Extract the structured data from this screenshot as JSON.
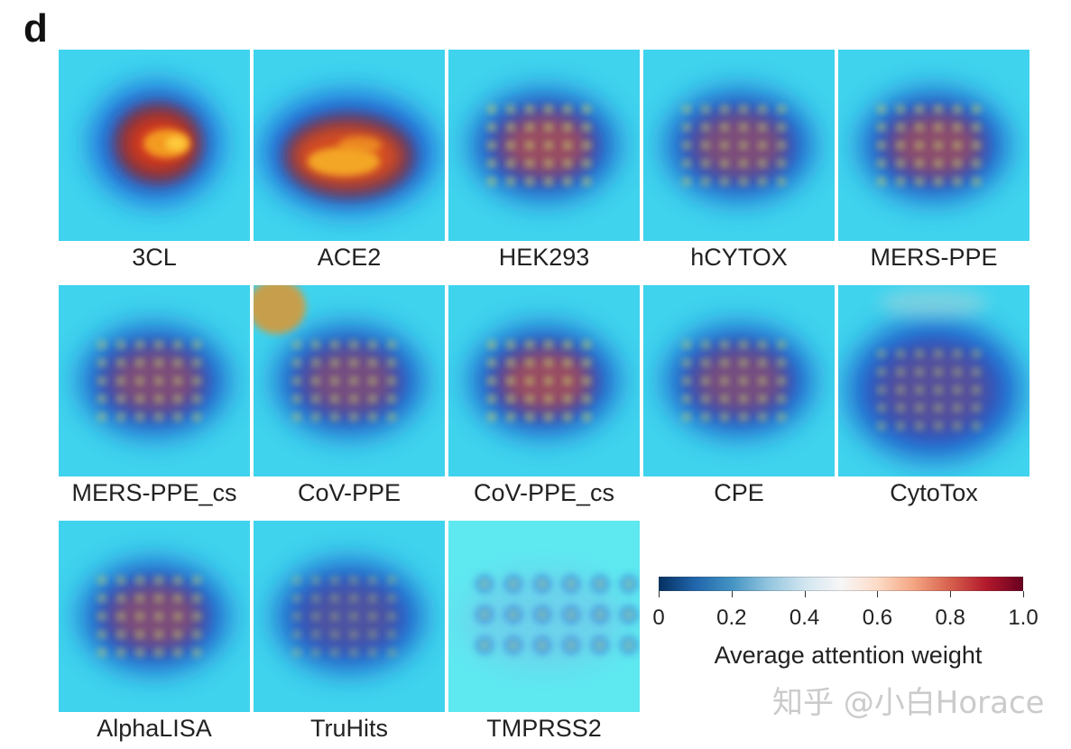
{
  "panel_letter": "d",
  "chart_data": {
    "type": "heatmap",
    "title": "",
    "colorbar": {
      "label": "Average attention weight",
      "range": [
        0,
        1.0
      ],
      "ticks": [
        "0",
        "0.2",
        "0.4",
        "0.6",
        "0.8",
        "1.0"
      ],
      "tick_values": [
        0,
        0.2,
        0.4,
        0.6,
        0.8,
        1.0
      ],
      "colors": [
        "#053061",
        "#2166ac",
        "#4393c3",
        "#92c5de",
        "#d1e5f0",
        "#f7f7f7",
        "#fddbc7",
        "#f4a582",
        "#d6604d",
        "#b2182b",
        "#67001f"
      ]
    },
    "panels": [
      {
        "label": "3CL",
        "peak": 0.9,
        "shape": "blob"
      },
      {
        "label": "ACE2",
        "peak": 0.85,
        "shape": "wide-blob"
      },
      {
        "label": "HEK293",
        "peak": 0.8,
        "shape": "grid"
      },
      {
        "label": "hCYTOX",
        "peak": 0.72,
        "shape": "grid"
      },
      {
        "label": "MERS-PPE",
        "peak": 0.76,
        "shape": "grid"
      },
      {
        "label": "MERS-PPE_cs",
        "peak": 0.72,
        "shape": "grid"
      },
      {
        "label": "CoV-PPE",
        "peak": 0.7,
        "shape": "grid-with-corner"
      },
      {
        "label": "CoV-PPE_cs",
        "peak": 0.8,
        "shape": "grid"
      },
      {
        "label": "CPE",
        "peak": 0.7,
        "shape": "grid"
      },
      {
        "label": "CytoTox",
        "peak": 0.62,
        "shape": "grid-wide"
      },
      {
        "label": "AlphaLISA",
        "peak": 0.72,
        "shape": "grid"
      },
      {
        "label": "TruHits",
        "peak": 0.55,
        "shape": "grid"
      },
      {
        "label": "TMPRSS2",
        "peak": 0.4,
        "shape": "dots"
      }
    ]
  },
  "watermark": "知乎 @小白Horace"
}
